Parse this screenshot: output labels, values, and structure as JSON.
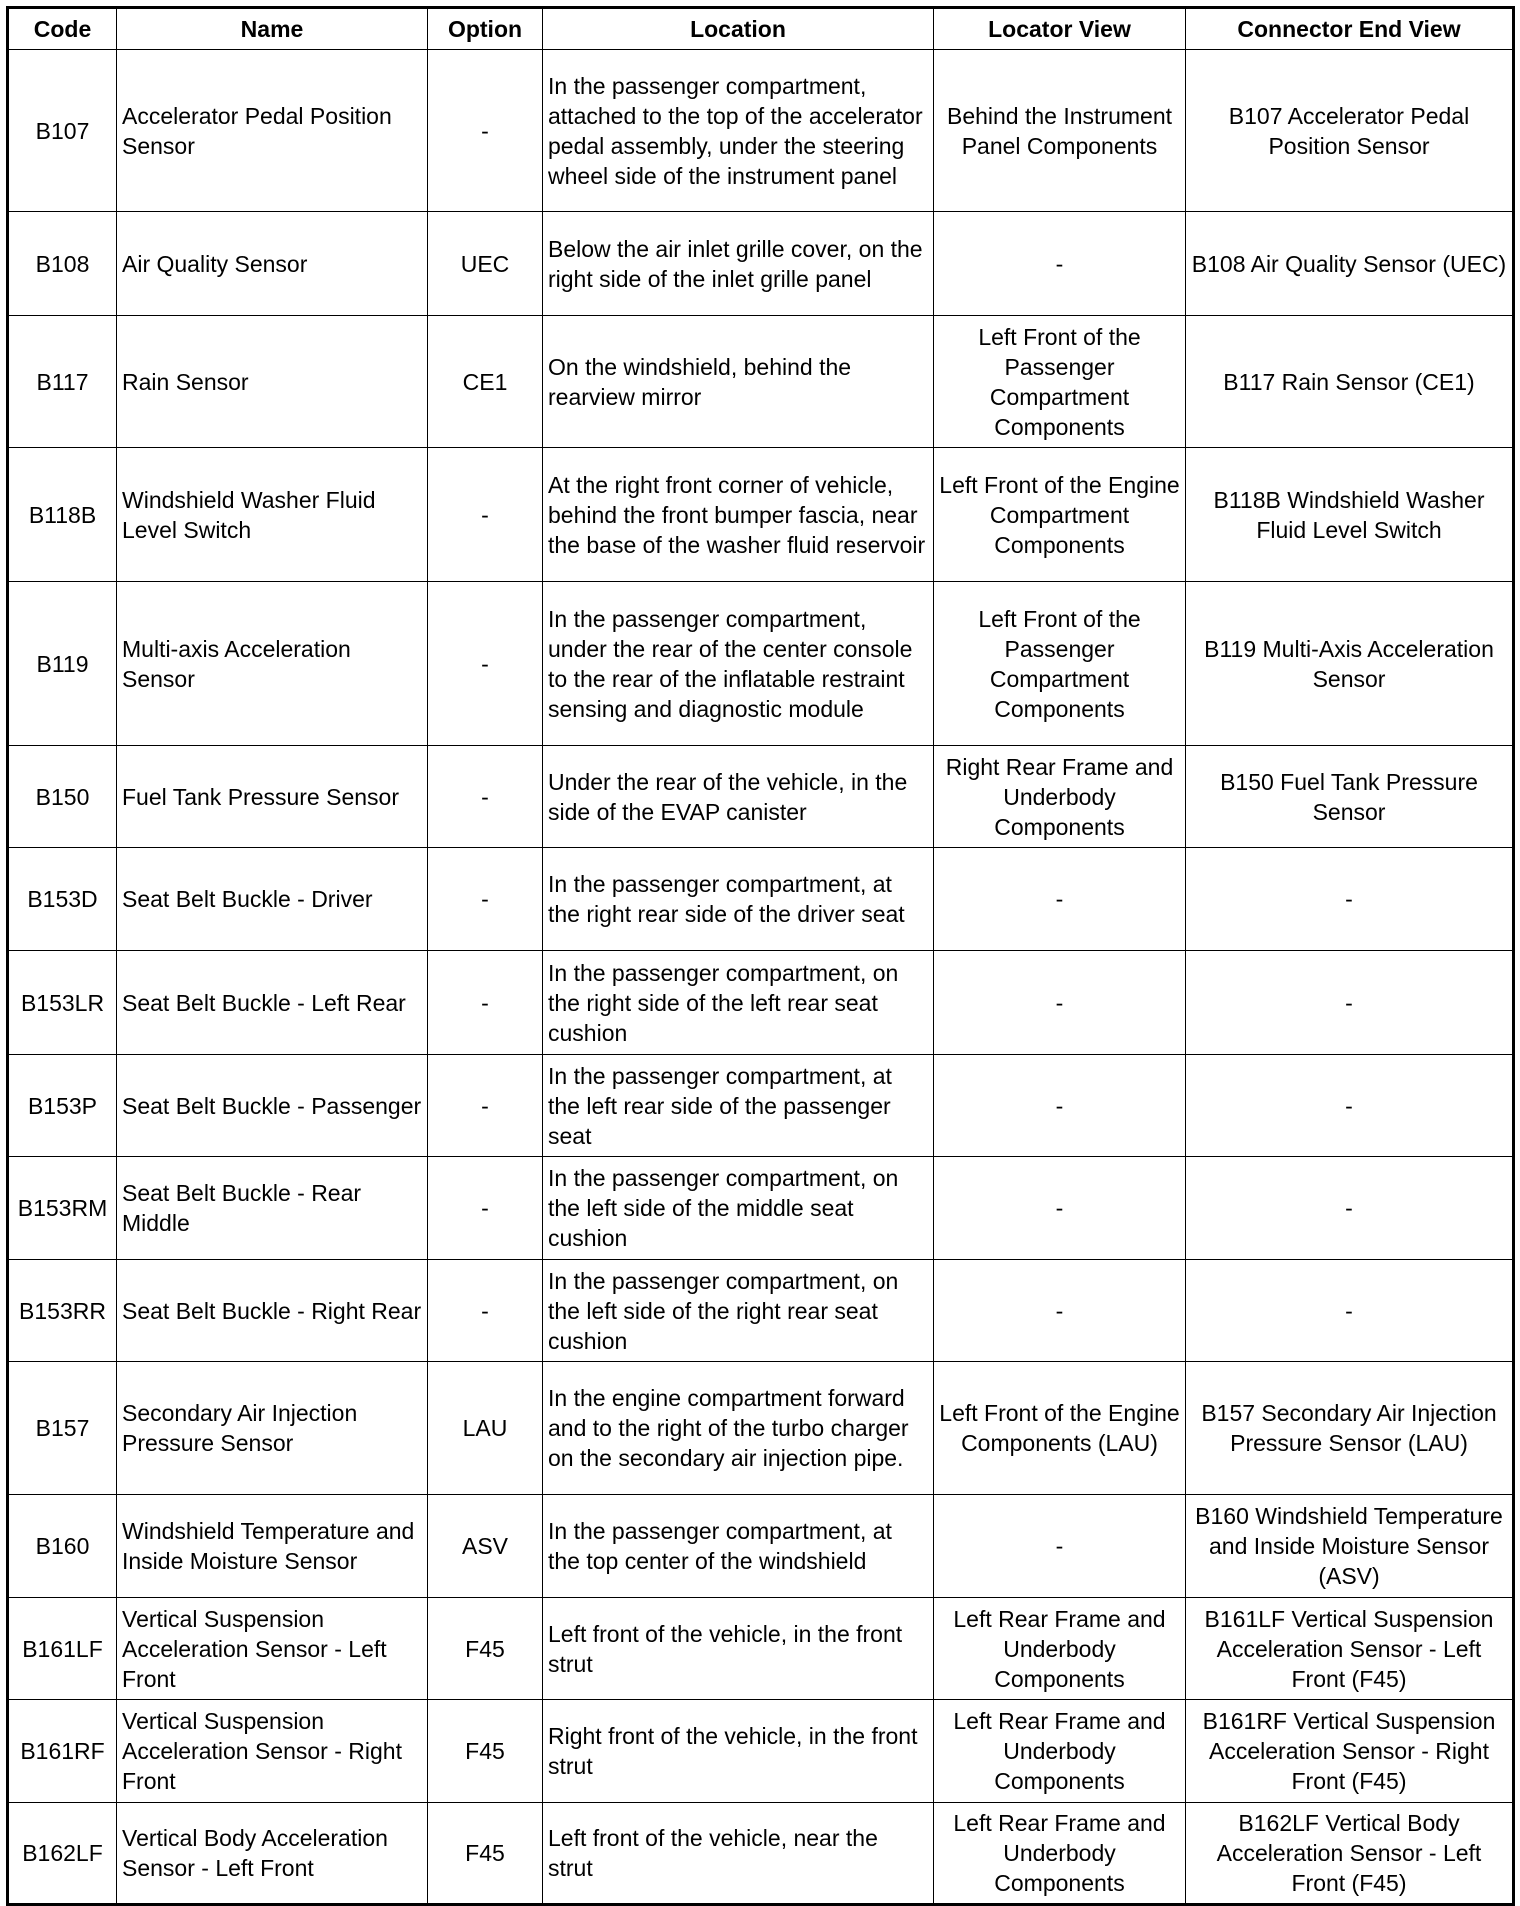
{
  "headers": [
    "Code",
    "Name",
    "Option",
    "Location",
    "Locator View",
    "Connector End View"
  ],
  "rows": [
    [
      "B107",
      "Accelerator Pedal Position Sensor",
      "-",
      "In the passenger compartment, attached to the top of the accelerator pedal assembly, under the steering wheel side of the instrument panel",
      "Behind the Instrument Panel Components",
      "B107 Accelerator Pedal Position Sensor"
    ],
    [
      "B108",
      "Air Quality Sensor",
      "UEC",
      "Below the air inlet grille cover, on the right side of the inlet grille panel",
      "-",
      "B108 Air Quality Sensor (UEC)"
    ],
    [
      "B117",
      "Rain Sensor",
      "CE1",
      "On the windshield, behind the rearview mirror",
      "Left Front of the Passenger Compartment Components",
      "B117 Rain Sensor (CE1)"
    ],
    [
      "B118B",
      "Windshield Washer Fluid Level Switch",
      "-",
      "At the right front corner of vehicle, behind the front bumper fascia, near the base of the washer fluid reservoir",
      "Left Front of the Engine Compartment Components",
      "B118B Windshield Washer Fluid Level Switch"
    ],
    [
      "B119",
      "Multi-axis Acceleration Sensor",
      "-",
      "In the passenger compartment, under the rear of the center console to the rear of the inflatable restraint sensing and diagnostic module",
      "Left Front of the Passenger Compartment Components",
      "B119 Multi-Axis Acceleration Sensor"
    ],
    [
      "B150",
      "Fuel Tank Pressure Sensor",
      "-",
      "Under the rear of the vehicle, in the side of the EVAP canister",
      "Right Rear Frame and Underbody Components",
      "B150 Fuel Tank Pressure Sensor"
    ],
    [
      "B153D",
      "Seat Belt Buckle - Driver",
      "-",
      "In the passenger compartment, at the right rear side of the driver seat",
      "-",
      "-"
    ],
    [
      "B153LR",
      "Seat Belt Buckle - Left Rear",
      "-",
      "In the passenger compartment, on the right side of the left rear seat cushion",
      "-",
      "-"
    ],
    [
      "B153P",
      "Seat Belt Buckle - Passenger",
      "-",
      "In the passenger compartment, at the left rear side of the passenger seat",
      "-",
      "-"
    ],
    [
      "B153RM",
      "Seat Belt Buckle - Rear Middle",
      "-",
      "In the passenger compartment, on the left side of the middle seat cushion",
      "-",
      "-"
    ],
    [
      "B153RR",
      "Seat Belt Buckle - Right Rear",
      "-",
      "In the passenger compartment, on the left side of the right rear seat cushion",
      "-",
      "-"
    ],
    [
      "B157",
      "Secondary Air Injection Pressure Sensor",
      "LAU",
      "In the engine compartment forward and to the right of the turbo charger on the secondary air injection pipe.",
      "Left Front of the Engine Components (LAU)",
      "B157 Secondary Air Injection Pressure Sensor (LAU)"
    ],
    [
      "B160",
      "Windshield Temperature and Inside Moisture Sensor",
      "ASV",
      "In the passenger compartment, at the top center of the windshield",
      "-",
      "B160 Windshield Temperature and Inside Moisture Sensor (ASV)"
    ],
    [
      "B161LF",
      "Vertical Suspension Acceleration Sensor - Left Front",
      "F45",
      "Left front of the vehicle, in the front strut",
      "Left Rear Frame and Underbody Components",
      "B161LF Vertical Suspension Acceleration Sensor - Left Front (F45)"
    ],
    [
      "B161RF",
      "Vertical Suspension Acceleration Sensor - Right Front",
      "F45",
      "Right front of the vehicle, in the front strut",
      "Left Rear Frame and Underbody Components",
      "B161RF Vertical Suspension Acceleration Sensor - Right Front (F45)"
    ],
    [
      "B162LF",
      "Vertical Body Acceleration Sensor - Left Front",
      "F45",
      "Left front of the vehicle, near the strut",
      "Left Rear Frame and Underbody Components",
      "B162LF Vertical Body Acceleration Sensor - Left Front (F45)"
    ]
  ]
}
